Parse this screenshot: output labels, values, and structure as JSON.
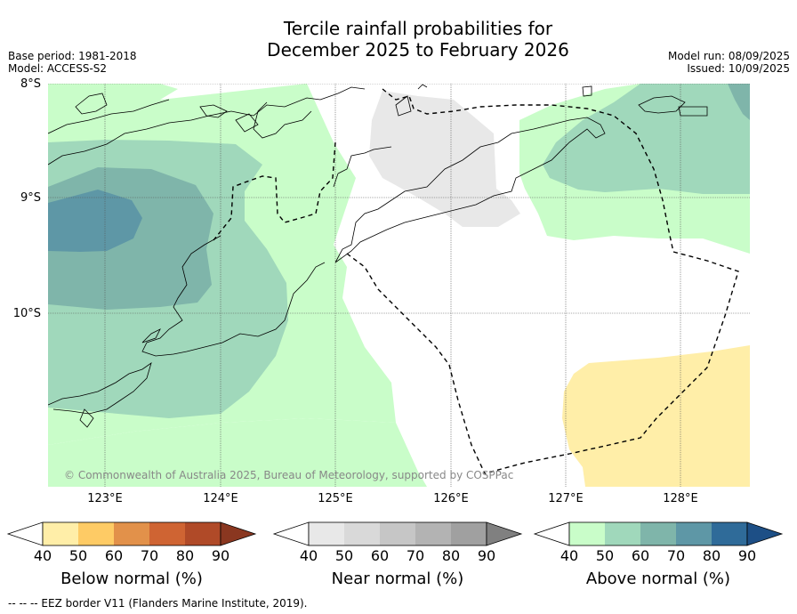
{
  "title_line1": "Tercile rainfall probabilities for",
  "title_line2": "December 2025 to February 2026",
  "base_period": "Base period: 1981-2018",
  "model": "Model: ACCESS-S2",
  "model_run": "Model run: 08/09/2025",
  "issued": "Issued: 10/09/2025",
  "lat_labels": [
    "8°S",
    "9°S",
    "10°S"
  ],
  "lon_labels": [
    "123°E",
    "124°E",
    "125°E",
    "126°E",
    "127°E",
    "128°E"
  ],
  "copyright": "© Commonwealth of Australia 2025, Bureau of Meteorology, supported by COSPPac",
  "colorbars": [
    {
      "title": "Below normal (%)",
      "ticks": [
        "40",
        "50",
        "60",
        "70",
        "80",
        "90"
      ],
      "colors": [
        "#ffffff",
        "#ffeea8",
        "#fecb65",
        "#e2914a",
        "#cf6433",
        "#b04a28",
        "#8a3720"
      ]
    },
    {
      "title": "Near normal (%)",
      "ticks": [
        "40",
        "50",
        "60",
        "70",
        "80",
        "90"
      ],
      "colors": [
        "#ffffff",
        "#e8e8e8",
        "#d9d9d9",
        "#c6c6c6",
        "#b3b3b3",
        "#a0a0a0",
        "#808080"
      ]
    },
    {
      "title": "Above normal (%)",
      "ticks": [
        "40",
        "50",
        "60",
        "70",
        "80",
        "90"
      ],
      "colors": [
        "#ffffff",
        "#c9fdc9",
        "#a0d8bb",
        "#7fb5aa",
        "#5e97a6",
        "#2f6b99",
        "#1d4f86"
      ]
    }
  ],
  "eez_note": "--  --  -- EEZ border V11 (Flanders Marine Institute, 2019)."
}
